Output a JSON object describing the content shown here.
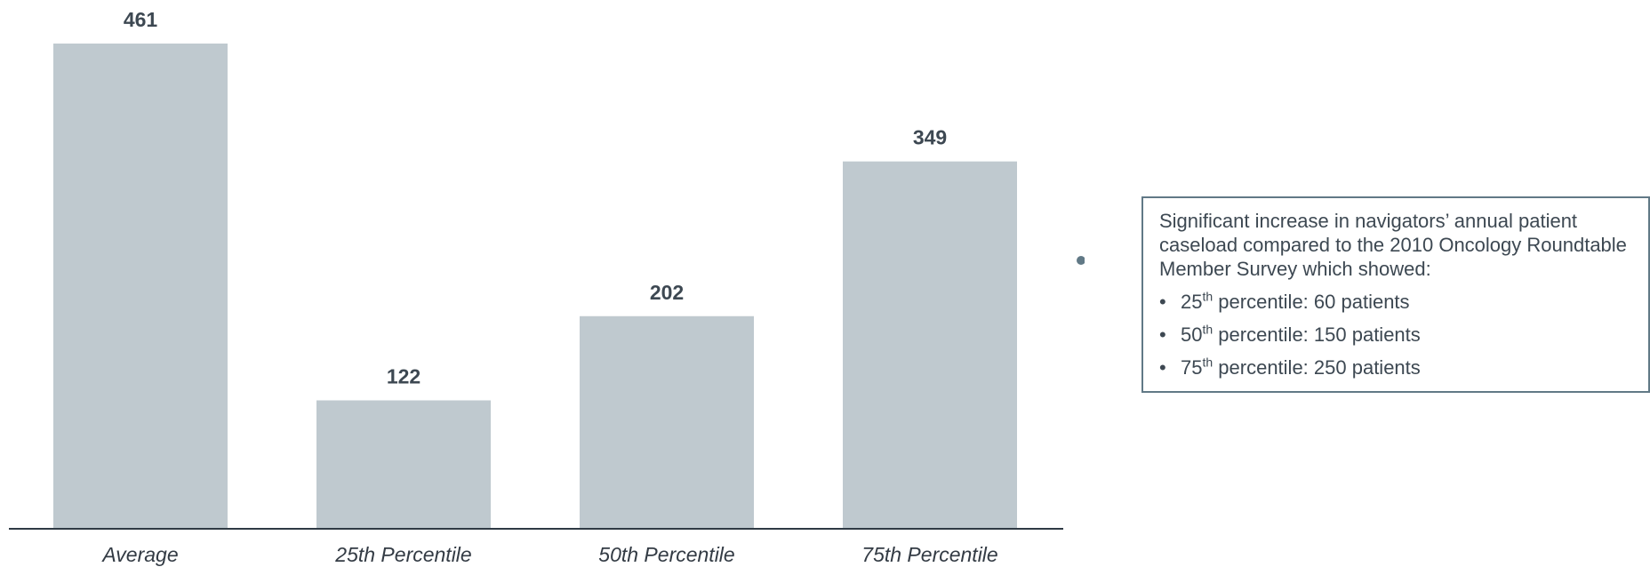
{
  "chart_data": {
    "type": "bar",
    "categories": [
      "Average",
      "25th Percentile",
      "50th Percentile",
      "75th Percentile"
    ],
    "values": [
      461,
      122,
      202,
      349
    ],
    "ylim": [
      0,
      461
    ],
    "grid": false,
    "bar_color": "#bfc9cf"
  },
  "callout": {
    "text": "Significant increase in navigators’ annual patient caseload compared to the 2010 Oncology Roundtable Member Survey which showed:",
    "items": [
      {
        "num": "25",
        "sup": "th",
        "rest": " percentile: 60 patients"
      },
      {
        "num": "50",
        "sup": "th",
        "rest": " percentile: 150 patients"
      },
      {
        "num": "75",
        "sup": "th",
        "rest": " percentile: 250 patients"
      }
    ],
    "border_color": "#617986"
  }
}
